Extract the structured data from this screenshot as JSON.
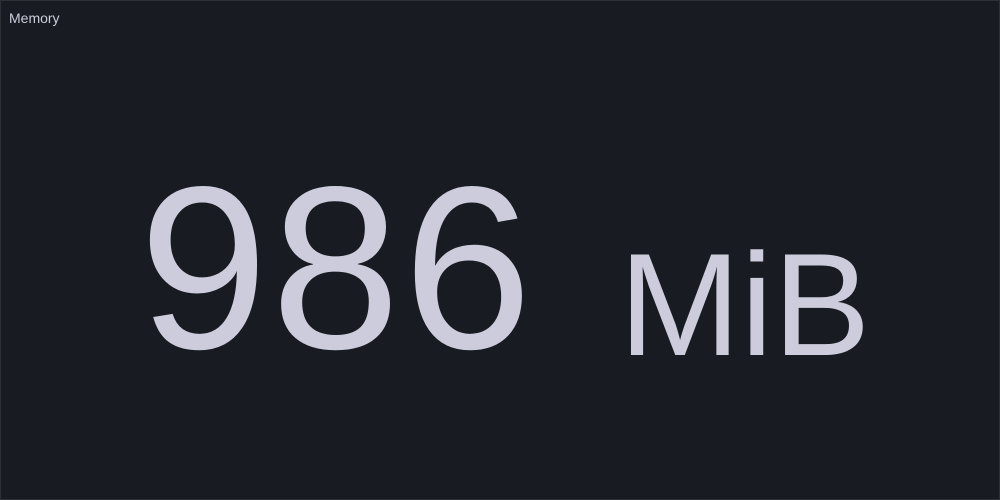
{
  "panel": {
    "title": "Memory",
    "stat": {
      "value": "986",
      "unit": "MiB"
    }
  },
  "colors": {
    "background": "#181b21",
    "border": "#2c3039",
    "text": "#ccccdc"
  }
}
